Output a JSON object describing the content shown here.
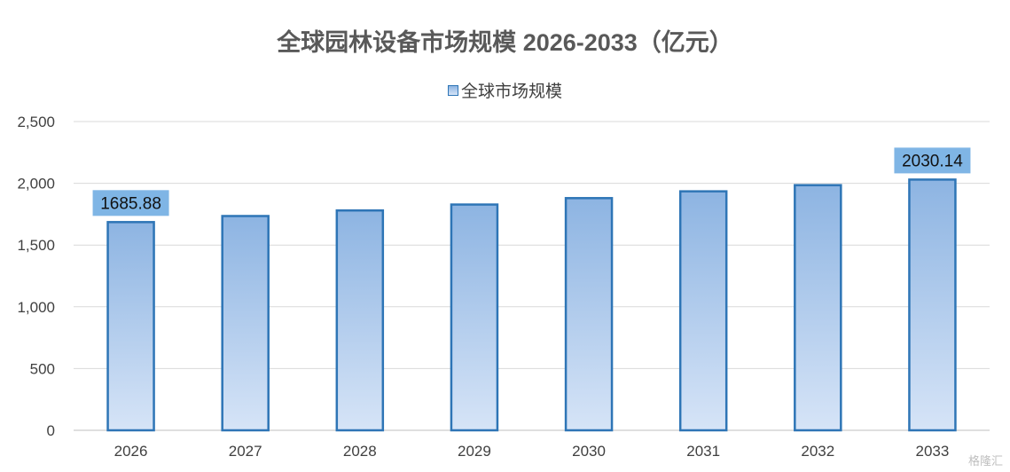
{
  "chart_data": {
    "type": "bar",
    "title": "全球园林设备市场规模 2026-2033（亿元）",
    "xlabel": "",
    "ylabel": "",
    "categories": [
      "2026",
      "2027",
      "2028",
      "2029",
      "2030",
      "2031",
      "2032",
      "2033"
    ],
    "series": [
      {
        "name": "全球市场规模",
        "values": [
          1685.88,
          1735,
          1780,
          1828,
          1880,
          1935,
          1985,
          2030.14
        ]
      }
    ],
    "ylim": [
      0,
      2500
    ],
    "yticks": [
      "0",
      "500",
      "1,000",
      "1,500",
      "2,000",
      "2,500"
    ],
    "data_labels": [
      "1685.88",
      "2030.14"
    ],
    "grid": true,
    "legend": "top",
    "colors": {
      "bar_top": "#8DB4E2",
      "bar_bottom": "#D6E4F7",
      "bar_border": "#2E75B6",
      "label_bg": "#7FB5E5"
    }
  },
  "watermark": "格隆汇"
}
